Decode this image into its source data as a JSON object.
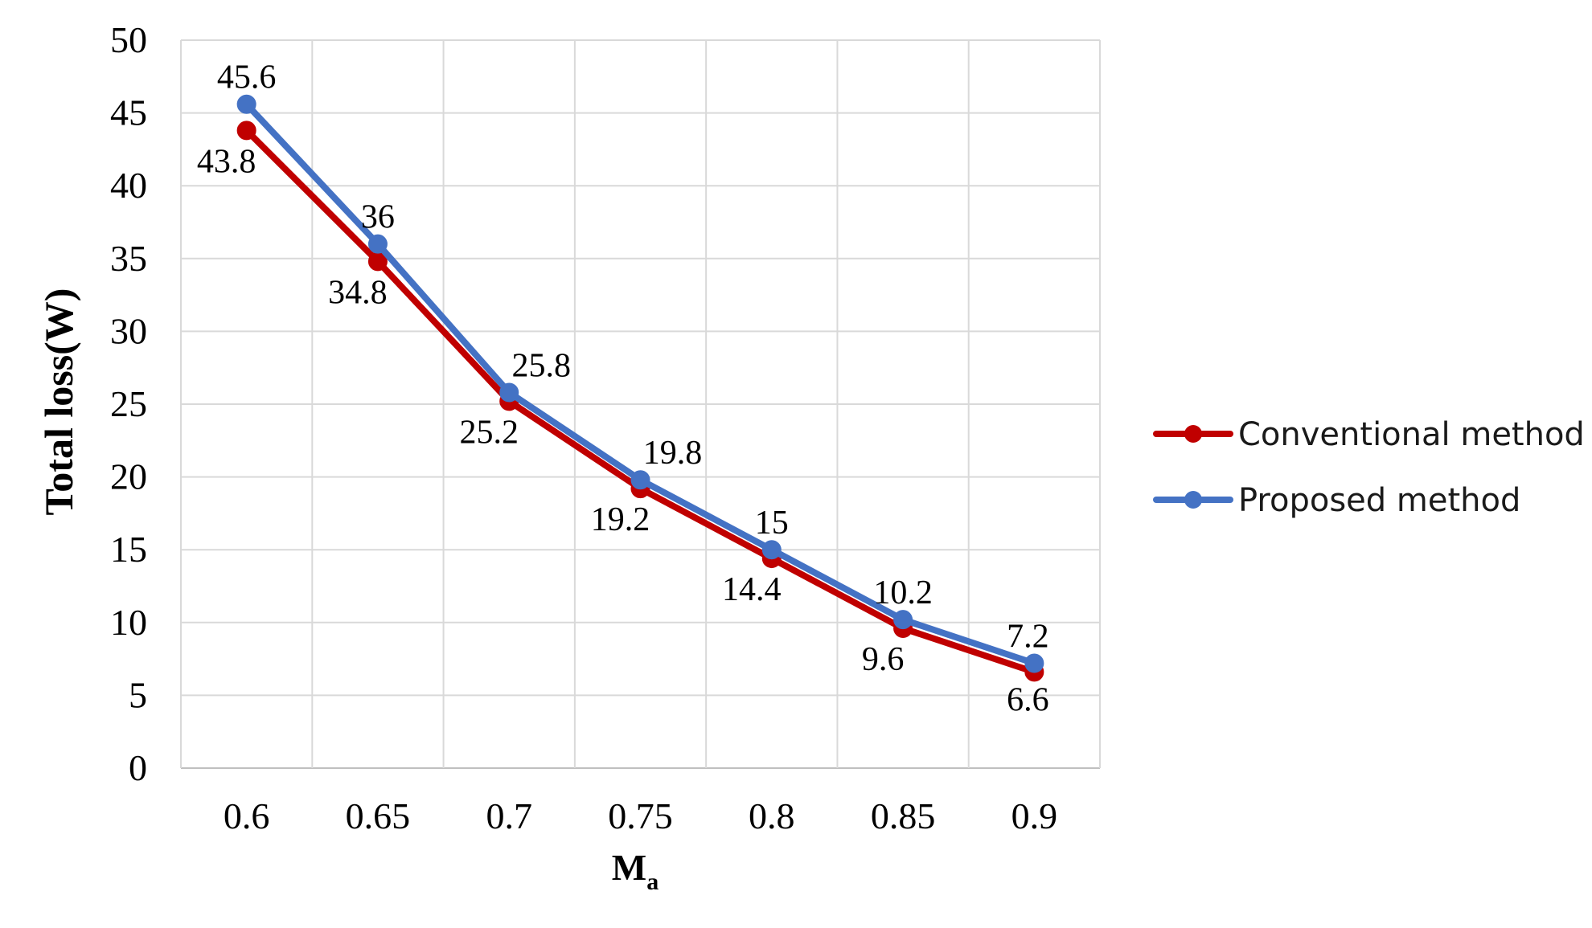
{
  "chart_data": {
    "type": "line",
    "xlabel": "M",
    "xlabel_sub": "a",
    "ylabel": "Total loss(W)",
    "categories": [
      "0.6",
      "0.65",
      "0.7",
      "0.75",
      "0.8",
      "0.85",
      "0.9"
    ],
    "ylim": [
      0,
      50
    ],
    "yticks": [
      "0",
      "5",
      "10",
      "15",
      "20",
      "25",
      "30",
      "35",
      "40",
      "45",
      "50"
    ],
    "grid": true,
    "legend_position": "right",
    "series": [
      {
        "name": "Conventional method",
        "color": "#c00000",
        "values": [
          43.8,
          34.8,
          25.2,
          19.2,
          14.4,
          9.6,
          6.6
        ],
        "labels": [
          "43.8",
          "34.8",
          "25.2",
          "19.2",
          "14.4",
          "9.6",
          "6.6"
        ]
      },
      {
        "name": "Proposed method",
        "color": "#4472c4",
        "values": [
          45.6,
          36,
          25.8,
          19.8,
          15,
          10.2,
          7.2
        ],
        "labels": [
          "45.6",
          "36",
          "25.8",
          "19.8",
          "15",
          "10.2",
          "7.2"
        ]
      }
    ]
  }
}
